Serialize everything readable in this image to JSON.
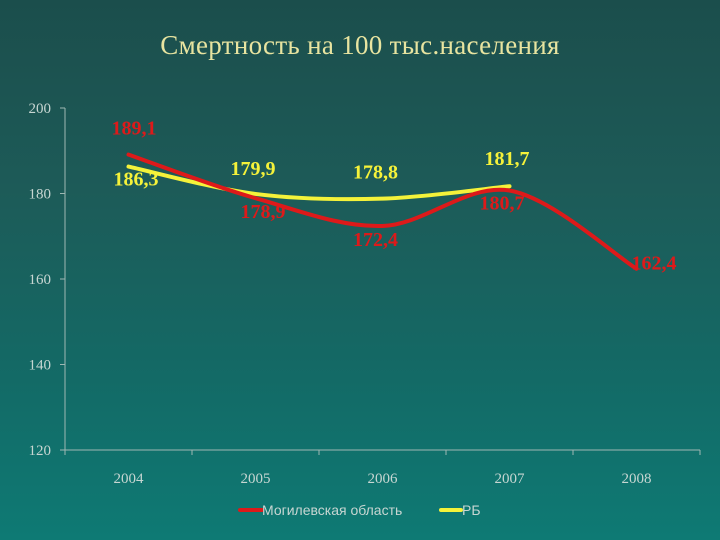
{
  "title": "Смертность на 100 тыс.населения",
  "chart_data": {
    "type": "line",
    "title": "Смертность на 100 тыс.населения",
    "categories": [
      "2004",
      "2005",
      "2006",
      "2007",
      "2008"
    ],
    "ylim": [
      120,
      200
    ],
    "yticks": [
      120,
      140,
      160,
      180,
      200
    ],
    "grid": false,
    "legend_position": "bottom",
    "series": [
      {
        "name": "Могилевская область",
        "color": "#dd1a1a",
        "values": [
          189.1,
          178.9,
          172.4,
          180.7,
          162.4
        ],
        "labels": [
          "189,1",
          "178,9",
          "172,4",
          "180,7",
          "162,4"
        ]
      },
      {
        "name": "РБ",
        "color": "#f5f23a",
        "values": [
          186.3,
          179.9,
          178.8,
          181.7,
          null
        ],
        "labels": [
          "186,3",
          "179,9",
          "178,8",
          "181,7",
          null
        ]
      }
    ]
  }
}
